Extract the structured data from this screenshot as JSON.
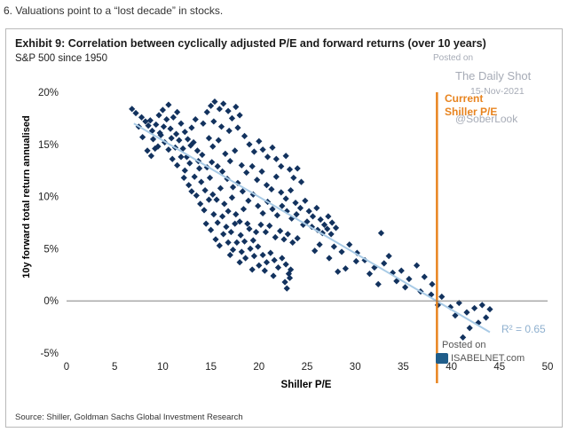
{
  "caption": "6. Valuations point to a “lost decade” in stocks.",
  "source": "Source: Shiller, Goldman Sachs Global Investment Research",
  "watermarks": {
    "posted_on": "Posted on",
    "daily_shot": "The Daily Shot",
    "date": "15-Nov-2021",
    "handle": "@SoberLook",
    "posted_on_2": "Posted on",
    "isabelnet": "ISABELNET.com"
  },
  "colors": {
    "points": "#12325e",
    "trend": "#a9cbe6",
    "current": "#e8841f",
    "r2": "#8fb0cf"
  },
  "chart_data": {
    "type": "scatter",
    "title": "Exhibit 9: Correlation between cyclically adjusted P/E and forward returns (over 10 years)",
    "subtitle": "S&P 500 since 1950",
    "xlabel": "Shiller P/E",
    "ylabel": "10y forward total return annualised",
    "xlim": [
      0,
      50
    ],
    "ylim": [
      -5,
      20
    ],
    "x_ticks": [
      "0",
      "5",
      "10",
      "15",
      "20",
      "25",
      "30",
      "35",
      "40",
      "45",
      "50"
    ],
    "y_ticks": [
      "-5%",
      "0%",
      "5%",
      "10%",
      "15%",
      "20%"
    ],
    "trendline": {
      "x": [
        7,
        44
      ],
      "y": [
        17,
        -3
      ],
      "r2_label": "R² = 0.65"
    },
    "current_line": {
      "x": 38.5,
      "label_line1": "Current",
      "label_line2": "Shiller P/E"
    },
    "points": [
      [
        6.8,
        18.4
      ],
      [
        7.2,
        18.0
      ],
      [
        7.8,
        17.6
      ],
      [
        8.2,
        17.2
      ],
      [
        8.5,
        16.8
      ],
      [
        8.9,
        16.3
      ],
      [
        9.3,
        16.9
      ],
      [
        9.6,
        17.8
      ],
      [
        10.0,
        18.3
      ],
      [
        10.4,
        17.4
      ],
      [
        10.8,
        16.5
      ],
      [
        11.1,
        17.6
      ],
      [
        11.5,
        18.1
      ],
      [
        11.9,
        17.0
      ],
      [
        12.3,
        16.2
      ],
      [
        12.6,
        15.5
      ],
      [
        13.0,
        16.6
      ],
      [
        13.4,
        17.4
      ],
      [
        9.0,
        15.5
      ],
      [
        9.5,
        14.8
      ],
      [
        9.8,
        15.9
      ],
      [
        10.2,
        15.2
      ],
      [
        10.6,
        14.5
      ],
      [
        10.9,
        15.6
      ],
      [
        11.3,
        14.7
      ],
      [
        11.7,
        15.4
      ],
      [
        12.1,
        14.6
      ],
      [
        12.5,
        13.8
      ],
      [
        8.4,
        14.4
      ],
      [
        8.8,
        13.9
      ],
      [
        9.2,
        14.6
      ],
      [
        7.9,
        15.7
      ],
      [
        13.2,
        15.2
      ],
      [
        13.6,
        14.4
      ],
      [
        11.0,
        13.6
      ],
      [
        11.5,
        13.0
      ],
      [
        11.9,
        13.8
      ],
      [
        12.3,
        12.5
      ],
      [
        12.8,
        13.2
      ],
      [
        13.3,
        11.9
      ],
      [
        13.8,
        12.7
      ],
      [
        14.0,
        11.4
      ],
      [
        14.4,
        10.6
      ],
      [
        14.9,
        11.8
      ],
      [
        15.2,
        10.2
      ],
      [
        15.6,
        9.7
      ],
      [
        16.0,
        10.8
      ],
      [
        16.4,
        9.3
      ],
      [
        16.8,
        8.6
      ],
      [
        17.2,
        9.9
      ],
      [
        17.6,
        8.3
      ],
      [
        18.0,
        7.6
      ],
      [
        18.4,
        8.8
      ],
      [
        18.8,
        7.4
      ],
      [
        13.5,
        10.1
      ],
      [
        13.9,
        9.3
      ],
      [
        14.3,
        8.7
      ],
      [
        14.8,
        9.7
      ],
      [
        15.3,
        8.3
      ],
      [
        15.7,
        7.5
      ],
      [
        16.2,
        8.1
      ],
      [
        16.6,
        7.1
      ],
      [
        17.1,
        6.6
      ],
      [
        17.5,
        7.4
      ],
      [
        18.1,
        6.3
      ],
      [
        18.5,
        5.7
      ],
      [
        19.0,
        6.9
      ],
      [
        19.4,
        5.8
      ],
      [
        19.7,
        6.6
      ],
      [
        14.5,
        7.4
      ],
      [
        15.0,
        6.8
      ],
      [
        15.5,
        5.9
      ],
      [
        15.9,
        5.3
      ],
      [
        16.3,
        6.4
      ],
      [
        16.8,
        5.6
      ],
      [
        17.3,
        4.9
      ],
      [
        17.7,
        5.6
      ],
      [
        18.2,
        4.7
      ],
      [
        18.6,
        4.1
      ],
      [
        19.1,
        5.0
      ],
      [
        19.5,
        4.3
      ],
      [
        19.9,
        5.2
      ],
      [
        20.4,
        4.4
      ],
      [
        20.8,
        3.7
      ],
      [
        21.2,
        4.6
      ],
      [
        21.6,
        3.9
      ],
      [
        22.0,
        3.2
      ],
      [
        22.4,
        4.1
      ],
      [
        22.8,
        3.5
      ],
      [
        23.1,
        2.6
      ],
      [
        22.7,
        1.8
      ],
      [
        22.9,
        1.2
      ],
      [
        23.2,
        2.2
      ],
      [
        23.3,
        3.0
      ],
      [
        20.6,
        2.9
      ],
      [
        21.5,
        2.4
      ],
      [
        20.0,
        3.4
      ],
      [
        14.2,
        17.0
      ],
      [
        14.6,
        18.1
      ],
      [
        15.0,
        18.7
      ],
      [
        15.4,
        19.1
      ],
      [
        15.9,
        18.4
      ],
      [
        16.3,
        18.9
      ],
      [
        16.8,
        18.2
      ],
      [
        17.2,
        17.5
      ],
      [
        17.6,
        18.6
      ],
      [
        18.0,
        17.8
      ],
      [
        15.3,
        17.2
      ],
      [
        16.1,
        16.7
      ],
      [
        16.9,
        16.3
      ],
      [
        17.8,
        16.6
      ],
      [
        18.5,
        15.8
      ],
      [
        19.0,
        15.0
      ],
      [
        19.5,
        14.3
      ],
      [
        20.0,
        15.3
      ],
      [
        20.4,
        14.5
      ],
      [
        20.9,
        13.8
      ],
      [
        21.4,
        14.7
      ],
      [
        21.8,
        13.6
      ],
      [
        22.3,
        12.9
      ],
      [
        22.8,
        13.9
      ],
      [
        23.2,
        12.6
      ],
      [
        23.6,
        11.8
      ],
      [
        24.0,
        12.7
      ],
      [
        24.4,
        11.4
      ],
      [
        14.8,
        15.6
      ],
      [
        15.2,
        14.8
      ],
      [
        15.8,
        15.4
      ],
      [
        16.5,
        14.1
      ],
      [
        17.0,
        13.4
      ],
      [
        17.5,
        14.4
      ],
      [
        18.2,
        13.0
      ],
      [
        18.7,
        12.3
      ],
      [
        19.3,
        12.9
      ],
      [
        19.8,
        11.6
      ],
      [
        20.3,
        12.4
      ],
      [
        20.8,
        11.1
      ],
      [
        21.3,
        10.7
      ],
      [
        21.8,
        11.9
      ],
      [
        22.3,
        10.4
      ],
      [
        22.8,
        9.8
      ],
      [
        23.3,
        10.6
      ],
      [
        23.8,
        9.4
      ],
      [
        24.3,
        8.9
      ],
      [
        24.8,
        9.6
      ],
      [
        25.2,
        8.6
      ],
      [
        25.6,
        8.1
      ],
      [
        26.0,
        8.9
      ],
      [
        26.4,
        7.8
      ],
      [
        26.8,
        7.3
      ],
      [
        27.2,
        8.1
      ],
      [
        27.6,
        7.5
      ],
      [
        28.0,
        7.0
      ],
      [
        25.0,
        7.6
      ],
      [
        25.5,
        7.1
      ],
      [
        26.1,
        6.8
      ],
      [
        26.6,
        6.5
      ],
      [
        27.1,
        6.9
      ],
      [
        27.5,
        6.4
      ],
      [
        24.6,
        7.3
      ],
      [
        23.9,
        8.3
      ],
      [
        23.4,
        7.9
      ],
      [
        22.9,
        8.6
      ],
      [
        22.4,
        9.1
      ],
      [
        21.9,
        8.2
      ],
      [
        21.4,
        8.8
      ],
      [
        20.9,
        9.5
      ],
      [
        20.4,
        8.4
      ],
      [
        19.9,
        9.1
      ],
      [
        19.4,
        10.2
      ],
      [
        18.9,
        9.6
      ],
      [
        18.3,
        10.5
      ],
      [
        17.8,
        11.3
      ],
      [
        17.3,
        10.9
      ],
      [
        16.7,
        11.7
      ],
      [
        16.2,
        12.4
      ],
      [
        15.7,
        12.9
      ],
      [
        15.1,
        13.3
      ],
      [
        14.6,
        12.8
      ],
      [
        20.2,
        7.3
      ],
      [
        20.7,
        6.6
      ],
      [
        21.1,
        7.2
      ],
      [
        21.7,
        6.1
      ],
      [
        22.2,
        6.7
      ],
      [
        22.6,
        5.9
      ],
      [
        23.0,
        6.4
      ],
      [
        23.5,
        5.6
      ],
      [
        24.0,
        6.0
      ],
      [
        27.8,
        5.2
      ],
      [
        28.6,
        4.7
      ],
      [
        29.4,
        5.4
      ],
      [
        30.2,
        4.6
      ],
      [
        31.0,
        3.9
      ],
      [
        32.0,
        3.2
      ],
      [
        33.0,
        3.6
      ],
      [
        33.9,
        2.7
      ],
      [
        34.8,
        2.9
      ],
      [
        35.6,
        2.1
      ],
      [
        36.4,
        3.4
      ],
      [
        37.2,
        2.3
      ],
      [
        38.0,
        1.6
      ],
      [
        36.8,
        0.9
      ],
      [
        39.0,
        0.4
      ],
      [
        39.9,
        -0.6
      ],
      [
        40.8,
        -0.2
      ],
      [
        41.6,
        -1.1
      ],
      [
        42.4,
        -0.7
      ],
      [
        43.2,
        -0.4
      ],
      [
        44.0,
        -0.8
      ],
      [
        43.6,
        -1.6
      ],
      [
        42.8,
        -2.1
      ],
      [
        41.9,
        -2.6
      ],
      [
        41.2,
        -3.5
      ],
      [
        40.4,
        -1.4
      ],
      [
        38.6,
        -0.4
      ],
      [
        37.9,
        0.6
      ],
      [
        32.7,
        6.5
      ],
      [
        30.1,
        3.8
      ],
      [
        31.5,
        2.6
      ],
      [
        29.0,
        3.1
      ],
      [
        33.5,
        4.3
      ],
      [
        34.3,
        1.9
      ],
      [
        35.2,
        1.3
      ],
      [
        32.4,
        1.6
      ],
      [
        27.3,
        4.1
      ],
      [
        26.3,
        5.4
      ],
      [
        25.8,
        4.8
      ],
      [
        28.2,
        2.8
      ],
      [
        19.3,
        3.0
      ],
      [
        18.0,
        3.7
      ],
      [
        17.0,
        4.4
      ],
      [
        12.7,
        11.1
      ],
      [
        12.2,
        11.8
      ],
      [
        13.0,
        10.5
      ],
      [
        9.7,
        16.1
      ],
      [
        10.1,
        16.7
      ],
      [
        8.7,
        17.3
      ],
      [
        7.5,
        16.7
      ],
      [
        10.6,
        18.8
      ],
      [
        11.4,
        16.0
      ],
      [
        12.9,
        14.9
      ],
      [
        13.7,
        13.4
      ],
      [
        14.1,
        14.0
      ]
    ]
  }
}
